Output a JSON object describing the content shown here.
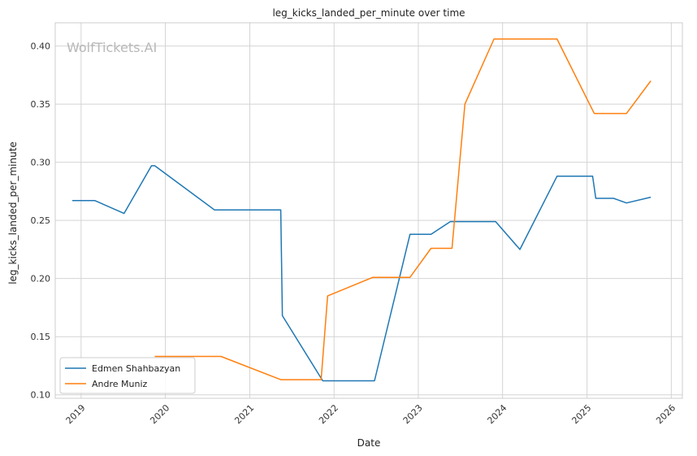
{
  "watermark": "WolfTickets.AI",
  "chart_data": {
    "type": "line",
    "title": "leg_kicks_landed_per_minute over time",
    "xlabel": "Date",
    "ylabel": "leg_kicks_landed_per_minute",
    "x_ticks": [
      "2019",
      "2020",
      "2021",
      "2022",
      "2023",
      "2024",
      "2025",
      "2026"
    ],
    "y_ticks": [
      "0.10",
      "0.15",
      "0.20",
      "0.25",
      "0.30",
      "0.35",
      "0.40"
    ],
    "xlim": [
      "2018-09-11",
      "2026-02-18"
    ],
    "ylim": [
      0.097,
      0.42
    ],
    "grid": true,
    "legend_position": "bottom-left",
    "series": [
      {
        "name": "Edmen Shahbazyan",
        "color": "#1f77b4",
        "points": [
          [
            "2018-11-24",
            0.267
          ],
          [
            "2019-03-02",
            0.267
          ],
          [
            "2019-07-06",
            0.256
          ],
          [
            "2019-11-02",
            0.297
          ],
          [
            "2019-11-16",
            0.297
          ],
          [
            "2020-08-01",
            0.259
          ],
          [
            "2021-05-15",
            0.259
          ],
          [
            "2021-05-22",
            0.168
          ],
          [
            "2021-11-13",
            0.112
          ],
          [
            "2022-06-25",
            0.112
          ],
          [
            "2022-11-26",
            0.238
          ],
          [
            "2023-02-25",
            0.238
          ],
          [
            "2023-05-20",
            0.249
          ],
          [
            "2023-12-02",
            0.249
          ],
          [
            "2024-03-16",
            0.225
          ],
          [
            "2024-08-24",
            0.288
          ],
          [
            "2025-01-25",
            0.288
          ],
          [
            "2025-02-08",
            0.269
          ],
          [
            "2025-04-26",
            0.269
          ],
          [
            "2025-06-21",
            0.265
          ],
          [
            "2025-10-04",
            0.27
          ]
        ]
      },
      {
        "name": "Andre Muniz",
        "color": "#ff7f0e",
        "points": [
          [
            "2019-11-16",
            0.133
          ],
          [
            "2020-08-29",
            0.133
          ],
          [
            "2021-05-15",
            0.113
          ],
          [
            "2021-11-06",
            0.113
          ],
          [
            "2021-12-04",
            0.185
          ],
          [
            "2022-06-18",
            0.201
          ],
          [
            "2022-11-26",
            0.201
          ],
          [
            "2023-02-25",
            0.226
          ],
          [
            "2023-05-27",
            0.226
          ],
          [
            "2023-07-22",
            0.35
          ],
          [
            "2023-11-25",
            0.406
          ],
          [
            "2024-08-24",
            0.406
          ],
          [
            "2025-02-01",
            0.342
          ],
          [
            "2025-06-21",
            0.342
          ],
          [
            "2025-10-04",
            0.37
          ]
        ]
      }
    ]
  }
}
